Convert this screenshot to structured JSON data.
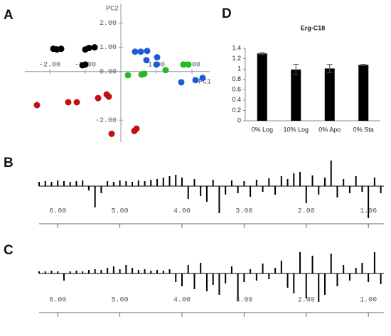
{
  "chart_data": [
    {
      "type": "scatter",
      "panel_label": "A",
      "xlabel": "PC1",
      "ylabel": "PC2",
      "xlim": [
        -2.7,
        2.5
      ],
      "ylim": [
        -2.9,
        2.8
      ],
      "xticks": [
        {
          "value": -2,
          "label": "-2.00"
        },
        {
          "value": -1,
          "label": "-1.00"
        },
        {
          "value": 1,
          "label": "1.00"
        },
        {
          "value": 2,
          "label": "2.00"
        }
      ],
      "yticks": [
        {
          "value": 2,
          "label": "2.00"
        },
        {
          "value": 1,
          "label": "1.00"
        },
        {
          "value": 0,
          "label": "0.00"
        },
        {
          "value": -2,
          "label": "-2.00"
        }
      ],
      "series": [
        {
          "color": "#000000",
          "x": [
            -1.9,
            -1.8,
            -1.68,
            -1.0,
            -0.9,
            -0.74,
            -1.08,
            -1.0
          ],
          "values": [
            0.94,
            0.91,
            0.94,
            0.91,
            0.97,
            1.0,
            0.26,
            0.29
          ]
        },
        {
          "color": "#1f5ad6",
          "x": [
            0.4,
            0.56,
            0.74,
            0.72,
            1.02,
            1.0,
            1.7,
            2.1,
            2.3
          ],
          "values": [
            0.82,
            0.82,
            0.85,
            0.47,
            0.59,
            0.29,
            -0.44,
            -0.35,
            -0.26
          ]
        },
        {
          "color": "#22bb22",
          "x": [
            0.2,
            0.58,
            0.66,
            1.26,
            1.76,
            1.9
          ],
          "values": [
            -0.15,
            -0.12,
            -0.09,
            0.06,
            0.29,
            0.29
          ]
        },
        {
          "color": "#c01010",
          "x": [
            -2.36,
            -1.48,
            -1.24,
            -0.64,
            -0.4,
            -0.34,
            -0.26,
            0.38,
            0.44
          ],
          "values": [
            -1.38,
            -1.26,
            -1.26,
            -1.09,
            -0.94,
            -1.03,
            -2.56,
            -2.44,
            -2.35
          ]
        }
      ]
    },
    {
      "type": "bar",
      "panel_label": "D",
      "title": "Erg-C18",
      "categories": [
        "0% Log",
        "10% Log",
        "0% Apo",
        "0% Sta"
      ],
      "values": [
        1.3,
        0.99,
        1.01,
        1.08
      ],
      "errors": [
        0.02,
        0.1,
        0.08,
        0.01
      ],
      "color": "#000000",
      "ylim": [
        0,
        1.4
      ],
      "yticks": [
        0,
        0.2,
        0.4,
        0.6,
        0.8,
        1,
        1.2,
        1.4
      ]
    },
    {
      "type": "stem",
      "panel_label": "B",
      "color": "#000000",
      "xlim": [
        6.3,
        0.75
      ],
      "xticks": [
        {
          "value": 6,
          "label": "6.00"
        },
        {
          "value": 5,
          "label": "5.00"
        },
        {
          "value": 4,
          "label": "4.00"
        },
        {
          "value": 3,
          "label": "3.00"
        },
        {
          "value": 2,
          "label": "2.00"
        },
        {
          "value": 1,
          "label": "1.00"
        }
      ],
      "x": [
        6.3,
        6.2,
        6.1,
        6.0,
        5.9,
        5.8,
        5.7,
        5.6,
        5.5,
        5.4,
        5.3,
        5.2,
        5.1,
        5.0,
        4.9,
        4.8,
        4.7,
        4.6,
        4.5,
        4.4,
        4.3,
        4.2,
        4.1,
        4.0,
        3.9,
        3.8,
        3.7,
        3.6,
        3.5,
        3.4,
        3.3,
        3.2,
        3.1,
        3.0,
        2.9,
        2.8,
        2.7,
        2.6,
        2.5,
        2.4,
        2.3,
        2.2,
        2.1,
        2.0,
        1.9,
        1.8,
        1.7,
        1.6,
        1.5,
        1.4,
        1.3,
        1.2,
        1.1,
        1.0,
        0.9,
        0.8
      ],
      "values": [
        6,
        7,
        6,
        8,
        7,
        6,
        7,
        8,
        -6,
        -30,
        -10,
        7,
        6,
        8,
        7,
        6,
        8,
        7,
        9,
        10,
        12,
        14,
        16,
        12,
        -18,
        10,
        -14,
        -22,
        9,
        -38,
        -12,
        8,
        -10,
        7,
        -15,
        9,
        -8,
        11,
        -12,
        14,
        10,
        18,
        20,
        -24,
        15,
        -12,
        12,
        36,
        -16,
        10,
        -10,
        14,
        -8,
        -45,
        12,
        -10
      ]
    },
    {
      "type": "stem",
      "panel_label": "C",
      "color": "#000000",
      "xlim": [
        6.3,
        0.75
      ],
      "xticks": [
        {
          "value": 6,
          "label": "6.00"
        },
        {
          "value": 5,
          "label": "5.00"
        },
        {
          "value": 4,
          "label": "4.00"
        },
        {
          "value": 3,
          "label": "3.00"
        },
        {
          "value": 2,
          "label": "2.00"
        },
        {
          "value": 1,
          "label": "1.00"
        }
      ],
      "x": [
        6.3,
        6.2,
        6.1,
        6.0,
        5.9,
        5.8,
        5.7,
        5.6,
        5.5,
        5.4,
        5.3,
        5.2,
        5.1,
        5.0,
        4.9,
        4.8,
        4.7,
        4.6,
        4.5,
        4.4,
        4.3,
        4.2,
        4.1,
        4.0,
        3.9,
        3.8,
        3.7,
        3.6,
        3.5,
        3.4,
        3.3,
        3.2,
        3.1,
        3.0,
        2.9,
        2.8,
        2.7,
        2.6,
        2.5,
        2.4,
        2.3,
        2.2,
        2.1,
        2.0,
        1.9,
        1.8,
        1.7,
        1.6,
        1.5,
        1.4,
        1.3,
        1.2,
        1.1,
        1.0,
        0.9,
        0.8
      ],
      "values": [
        3,
        3,
        4,
        3,
        -10,
        3,
        4,
        3,
        5,
        6,
        5,
        8,
        10,
        6,
        12,
        8,
        5,
        6,
        4,
        5,
        4,
        6,
        -12,
        -18,
        12,
        -22,
        15,
        -25,
        -16,
        -30,
        -14,
        10,
        -38,
        -12,
        6,
        -10,
        14,
        -8,
        8,
        18,
        -20,
        -28,
        30,
        -35,
        25,
        -40,
        -30,
        28,
        -18,
        12,
        -10,
        8,
        15,
        -12,
        30,
        -15
      ]
    }
  ]
}
